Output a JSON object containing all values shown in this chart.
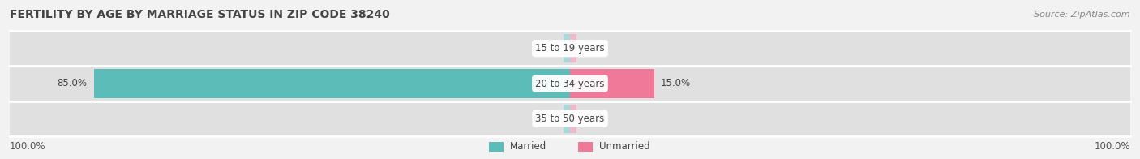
{
  "title": "FERTILITY BY AGE BY MARRIAGE STATUS IN ZIP CODE 38240",
  "source": "Source: ZipAtlas.com",
  "rows": [
    {
      "label": "15 to 19 years",
      "married": 0.0,
      "unmarried": 0.0
    },
    {
      "label": "20 to 34 years",
      "married": 85.0,
      "unmarried": 15.0
    },
    {
      "label": "35 to 50 years",
      "married": 0.0,
      "unmarried": 0.0
    }
  ],
  "max_value": 100.0,
  "married_color": "#5bbcb8",
  "unmarried_color": "#f07898",
  "married_light_color": "#a8d8d8",
  "unmarried_light_color": "#f0b8cc",
  "bg_color": "#f2f2f2",
  "bar_bg_color": "#e0e0e0",
  "row_divider_color": "#ffffff",
  "title_fontsize": 10,
  "label_fontsize": 8.5,
  "source_fontsize": 8,
  "legend_married": "Married",
  "legend_unmarried": "Unmarried",
  "left_axis_label": "100.0%",
  "right_axis_label": "100.0%"
}
